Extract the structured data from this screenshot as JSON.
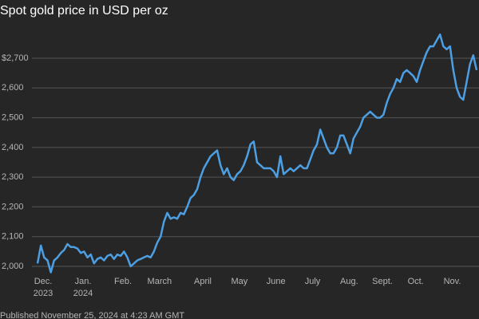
{
  "chart_data": {
    "type": "line",
    "title": "Spot gold price in USD per oz",
    "footer": "Published November 25, 2024 at 4:23 AM GMT",
    "color": "#4c9fe3",
    "grid": true,
    "ylim": [
      1950,
      2800
    ],
    "yticks": [
      {
        "value": 2000,
        "label": "2,000"
      },
      {
        "value": 2100,
        "label": "2,100"
      },
      {
        "value": 2200,
        "label": "2,200"
      },
      {
        "value": 2300,
        "label": "2,300"
      },
      {
        "value": 2400,
        "label": "2,400"
      },
      {
        "value": 2500,
        "label": "2,500"
      },
      {
        "value": 2600,
        "label": "2,600"
      },
      {
        "value": 2700,
        "label": "$2,700"
      }
    ],
    "categories": [
      "Dec.\n2023",
      null,
      null,
      null,
      null,
      null,
      null,
      null,
      null,
      null,
      null,
      null,
      "Jan.\n2024",
      null,
      null,
      null,
      null,
      null,
      null,
      null,
      null,
      null,
      null,
      null,
      "Feb.",
      null,
      null,
      null,
      null,
      null,
      null,
      null,
      null,
      null,
      null,
      "March",
      null,
      null,
      null,
      null,
      null,
      null,
      null,
      null,
      null,
      null,
      null,
      null,
      "April",
      null,
      null,
      null,
      null,
      null,
      null,
      null,
      null,
      null,
      null,
      "May",
      null,
      null,
      null,
      null,
      null,
      null,
      null,
      null,
      null,
      null,
      "June",
      null,
      null,
      null,
      null,
      null,
      null,
      null,
      null,
      null,
      null,
      "July",
      null,
      null,
      null,
      null,
      null,
      null,
      null,
      null,
      null,
      null,
      "Aug.",
      null,
      null,
      null,
      null,
      null,
      null,
      null,
      null,
      null,
      "Sept.",
      null,
      null,
      null,
      null,
      null,
      null,
      null,
      null,
      null,
      "Oct.",
      null,
      null,
      null,
      null,
      null,
      null,
      null,
      null,
      null,
      null,
      "Nov.",
      null,
      null,
      null,
      null,
      null,
      null,
      null,
      null,
      null
    ],
    "values": [
      2010,
      2070,
      2030,
      2020,
      1980,
      2020,
      2030,
      2045,
      2055,
      2075,
      2065,
      2065,
      2060,
      2045,
      2050,
      2030,
      2040,
      2010,
      2025,
      2030,
      2020,
      2035,
      2040,
      2025,
      2040,
      2035,
      2050,
      2030,
      2000,
      2010,
      2020,
      2025,
      2030,
      2035,
      2030,
      2050,
      2080,
      2100,
      2150,
      2180,
      2160,
      2165,
      2160,
      2180,
      2175,
      2200,
      2230,
      2240,
      2260,
      2300,
      2330,
      2350,
      2370,
      2380,
      2390,
      2340,
      2310,
      2330,
      2300,
      2290,
      2310,
      2320,
      2340,
      2370,
      2410,
      2420,
      2350,
      2340,
      2330,
      2330,
      2330,
      2320,
      2300,
      2370,
      2310,
      2320,
      2330,
      2320,
      2330,
      2340,
      2330,
      2330,
      2360,
      2390,
      2410,
      2460,
      2430,
      2400,
      2380,
      2380,
      2400,
      2440,
      2440,
      2410,
      2380,
      2430,
      2450,
      2470,
      2500,
      2510,
      2520,
      2510,
      2500,
      2500,
      2510,
      2550,
      2580,
      2600,
      2630,
      2620,
      2650,
      2660,
      2650,
      2640,
      2620,
      2660,
      2690,
      2720,
      2740,
      2740,
      2760,
      2780,
      2740,
      2730,
      2740,
      2660,
      2600,
      2570,
      2560,
      2620,
      2680,
      2710,
      2660
    ]
  }
}
